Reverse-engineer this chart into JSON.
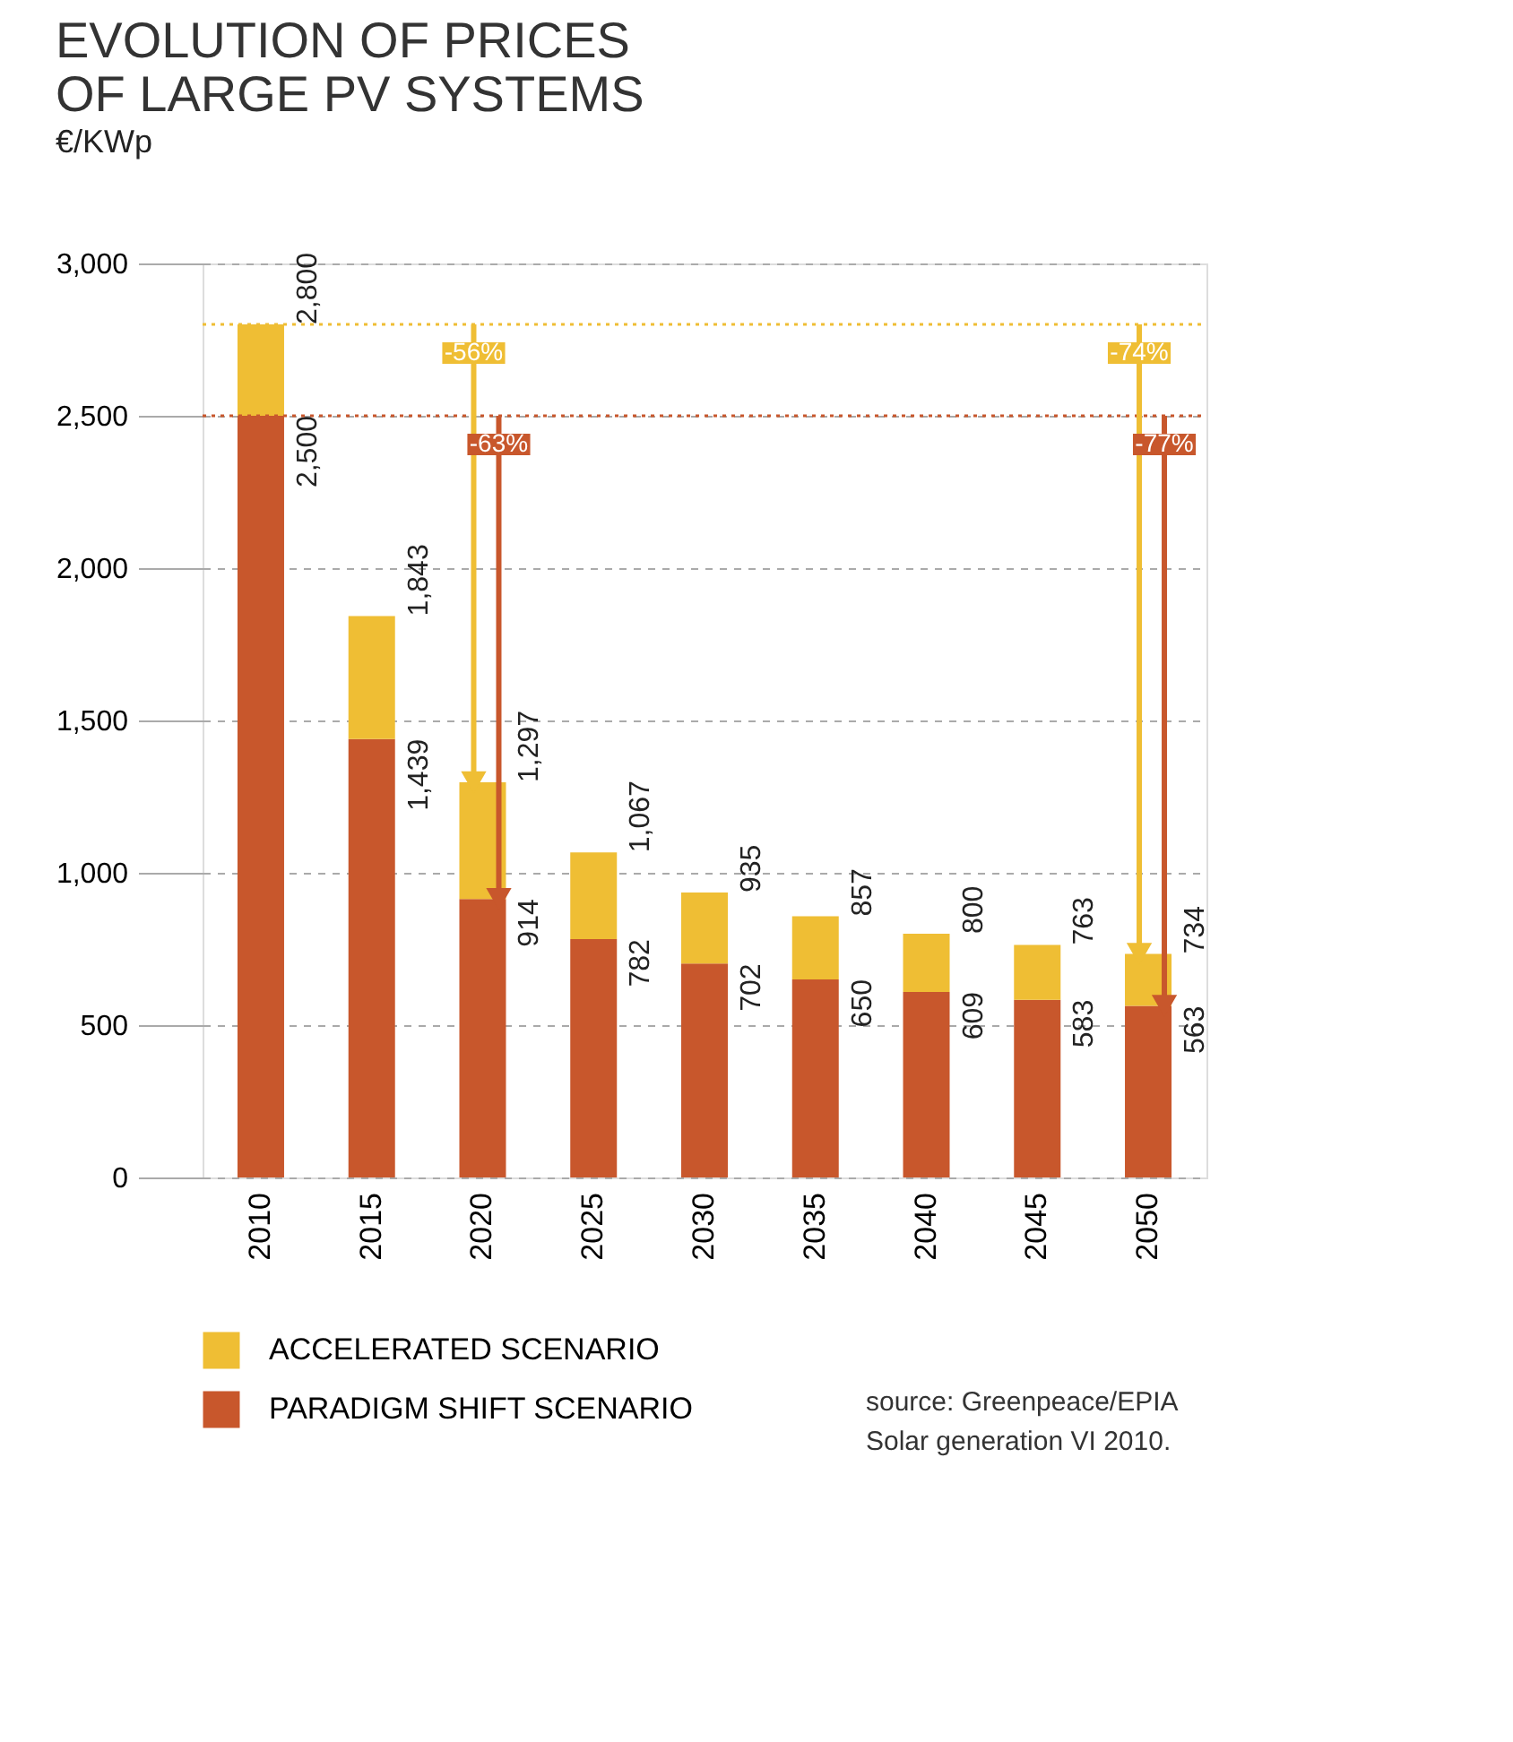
{
  "chart_data": {
    "type": "bar",
    "title": "EVOLUTION OF PRICES OF LARGE PV SYSTEMS",
    "subtitle": "€/KWp",
    "categories": [
      "2010",
      "2015",
      "2020",
      "2025",
      "2030",
      "2035",
      "2040",
      "2045",
      "2050"
    ],
    "stacked": true,
    "series": [
      {
        "name": "PARADIGM SHIFT SCENARIO",
        "color": "#c8572c",
        "values": [
          2500,
          1439,
          914,
          782,
          702,
          650,
          609,
          583,
          563
        ],
        "value_labels": [
          "2,500",
          "1,439",
          "914",
          "782",
          "702",
          "650",
          "609",
          "583",
          "563"
        ]
      },
      {
        "name": "ACCELERATED SCENARIO",
        "color": "#efbe34",
        "values": [
          300,
          404,
          383,
          285,
          233,
          207,
          191,
          180,
          171
        ]
      }
    ],
    "totals": [
      "2,800",
      "1,843",
      "1,297",
      "1,067",
      "935",
      "857",
      "800",
      "763",
      "734"
    ],
    "ylim": [
      0,
      3000
    ],
    "yticks": [
      0,
      {
        "value": 500,
        "label": "500"
      },
      {
        "value": 1000,
        "label": "1,000"
      },
      {
        "value": 1500,
        "label": "1,500"
      },
      {
        "value": 2000,
        "label": "2,000"
      },
      {
        "value": 2500,
        "label": "2,500"
      },
      {
        "value": 3000,
        "label": "3,000"
      }
    ],
    "grid": "y",
    "legend": "bottom left",
    "ref_lines": [
      {
        "axis": "y",
        "value": 2800,
        "color": "#efbe34",
        "line_style": "dotted"
      },
      {
        "axis": "y",
        "value": 2500,
        "color": "#c8572c",
        "line_style": "dotted"
      }
    ],
    "annotations": [
      {
        "text": "-56%",
        "x": "2020",
        "y": 2800
      },
      {
        "text": "-63%",
        "x": "2020",
        "y": 2500
      },
      {
        "text": "-74%",
        "x": "2050",
        "y": 2800
      },
      {
        "text": "-77%",
        "x": "2050",
        "y": 2500
      },
      "source: Greenpeace/EPIA",
      "Solar generation VI 2010."
    ]
  }
}
